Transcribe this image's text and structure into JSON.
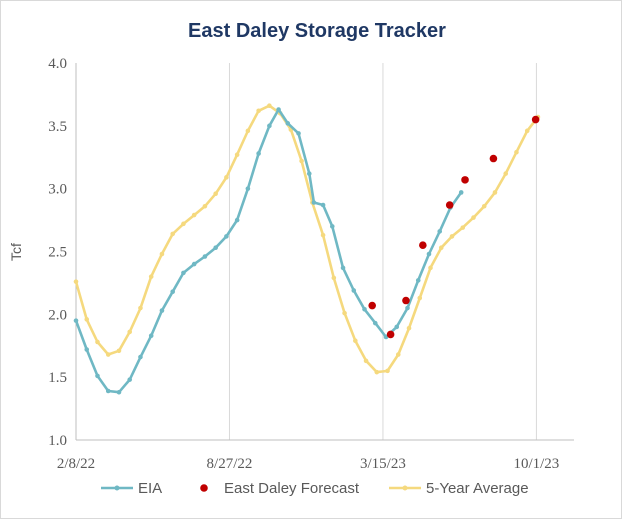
{
  "chart_data": {
    "type": "line",
    "title": "East Daley Storage Tracker",
    "xlabel": "",
    "ylabel": "Tcf",
    "ylim": [
      1.0,
      4.0
    ],
    "y_ticks": [
      "1.0",
      "1.5",
      "2.0",
      "2.5",
      "3.0",
      "3.5",
      "4.0"
    ],
    "y_tick_values": [
      1.0,
      1.5,
      2.0,
      2.5,
      3.0,
      3.5,
      4.0
    ],
    "xlim": [
      "2022-02-08",
      "2023-11-19"
    ],
    "x_ticks": [
      "2/8/22",
      "8/27/22",
      "3/15/23",
      "10/1/23"
    ],
    "x_tick_dates": [
      "2022-02-08",
      "2022-08-27",
      "2023-03-15",
      "2023-10-01"
    ],
    "grid": "vertical",
    "legend_position": "bottom",
    "series": [
      {
        "name": "EIA",
        "color": "#6fb8c4",
        "marker": "small-circle",
        "points": [
          [
            "2022-02-08",
            1.95
          ],
          [
            "2022-02-22",
            1.72
          ],
          [
            "2022-03-08",
            1.51
          ],
          [
            "2022-03-22",
            1.39
          ],
          [
            "2022-04-05",
            1.38
          ],
          [
            "2022-04-19",
            1.48
          ],
          [
            "2022-05-03",
            1.66
          ],
          [
            "2022-05-17",
            1.83
          ],
          [
            "2022-05-31",
            2.03
          ],
          [
            "2022-06-14",
            2.18
          ],
          [
            "2022-06-28",
            2.33
          ],
          [
            "2022-07-12",
            2.4
          ],
          [
            "2022-07-26",
            2.46
          ],
          [
            "2022-08-09",
            2.53
          ],
          [
            "2022-08-23",
            2.62
          ],
          [
            "2022-09-06",
            2.75
          ],
          [
            "2022-09-20",
            3.0
          ],
          [
            "2022-10-04",
            3.28
          ],
          [
            "2022-10-18",
            3.5
          ],
          [
            "2022-10-30",
            3.63
          ],
          [
            "2022-11-11",
            3.52
          ],
          [
            "2022-11-25",
            3.44
          ],
          [
            "2022-12-09",
            3.12
          ],
          [
            "2022-12-15",
            2.89
          ],
          [
            "2022-12-27",
            2.87
          ],
          [
            "2023-01-08",
            2.7
          ],
          [
            "2023-01-22",
            2.37
          ],
          [
            "2023-02-05",
            2.19
          ],
          [
            "2023-02-19",
            2.04
          ],
          [
            "2023-03-05",
            1.93
          ],
          [
            "2023-03-19",
            1.82
          ],
          [
            "2023-04-02",
            1.9
          ],
          [
            "2023-04-16",
            2.05
          ],
          [
            "2023-04-30",
            2.27
          ],
          [
            "2023-05-14",
            2.48
          ],
          [
            "2023-05-28",
            2.66
          ],
          [
            "2023-06-11",
            2.85
          ],
          [
            "2023-06-25",
            2.97
          ]
        ]
      },
      {
        "name": "East Daley Forecast",
        "color": "#c00000",
        "marker": "dot-only",
        "points": [
          [
            "2023-03-01",
            2.07
          ],
          [
            "2023-03-25",
            1.84
          ],
          [
            "2023-04-14",
            2.11
          ],
          [
            "2023-05-06",
            2.55
          ],
          [
            "2023-06-10",
            2.87
          ],
          [
            "2023-06-30",
            3.07
          ],
          [
            "2023-08-06",
            3.24
          ],
          [
            "2023-09-30",
            3.55
          ]
        ]
      },
      {
        "name": "5-Year Average",
        "color": "#f5d97e",
        "marker": "small-circle",
        "points": [
          [
            "2022-02-08",
            2.26
          ],
          [
            "2022-02-22",
            1.96
          ],
          [
            "2022-03-08",
            1.78
          ],
          [
            "2022-03-22",
            1.68
          ],
          [
            "2022-04-05",
            1.71
          ],
          [
            "2022-04-19",
            1.86
          ],
          [
            "2022-05-03",
            2.05
          ],
          [
            "2022-05-17",
            2.3
          ],
          [
            "2022-05-31",
            2.48
          ],
          [
            "2022-06-14",
            2.64
          ],
          [
            "2022-06-28",
            2.72
          ],
          [
            "2022-07-12",
            2.79
          ],
          [
            "2022-07-26",
            2.86
          ],
          [
            "2022-08-09",
            2.96
          ],
          [
            "2022-08-23",
            3.09
          ],
          [
            "2022-09-06",
            3.27
          ],
          [
            "2022-09-20",
            3.46
          ],
          [
            "2022-10-04",
            3.62
          ],
          [
            "2022-10-18",
            3.66
          ],
          [
            "2022-11-01",
            3.6
          ],
          [
            "2022-11-15",
            3.47
          ],
          [
            "2022-11-29",
            3.22
          ],
          [
            "2022-12-13",
            2.89
          ],
          [
            "2022-12-27",
            2.63
          ],
          [
            "2023-01-10",
            2.29
          ],
          [
            "2023-01-24",
            2.01
          ],
          [
            "2023-02-07",
            1.79
          ],
          [
            "2023-02-21",
            1.63
          ],
          [
            "2023-03-07",
            1.54
          ],
          [
            "2023-03-21",
            1.55
          ],
          [
            "2023-04-04",
            1.68
          ],
          [
            "2023-04-18",
            1.89
          ],
          [
            "2023-05-02",
            2.13
          ],
          [
            "2023-05-16",
            2.37
          ],
          [
            "2023-05-30",
            2.53
          ],
          [
            "2023-06-13",
            2.62
          ],
          [
            "2023-06-27",
            2.69
          ],
          [
            "2023-07-11",
            2.77
          ],
          [
            "2023-07-25",
            2.86
          ],
          [
            "2023-08-08",
            2.97
          ],
          [
            "2023-08-22",
            3.12
          ],
          [
            "2023-09-05",
            3.29
          ],
          [
            "2023-09-19",
            3.46
          ],
          [
            "2023-10-03",
            3.57
          ]
        ]
      }
    ]
  }
}
